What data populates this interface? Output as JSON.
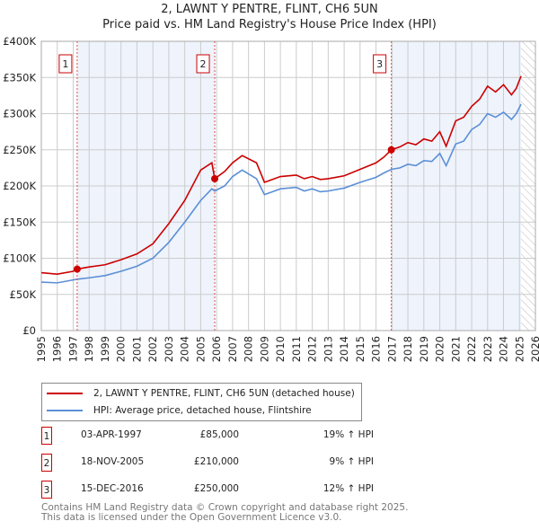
{
  "chart_data": {
    "type": "line",
    "title": "2, LAWNT Y PENTRE, FLINT, CH6 5UN",
    "subtitle": "Price paid vs. HM Land Registry's House Price Index (HPI)",
    "xlim": [
      1995,
      2026
    ],
    "ylim": [
      0,
      400000
    ],
    "y_ticks": [
      {
        "v": 0,
        "label": "£0"
      },
      {
        "v": 50000,
        "label": "£50K"
      },
      {
        "v": 100000,
        "label": "£100K"
      },
      {
        "v": 150000,
        "label": "£150K"
      },
      {
        "v": 200000,
        "label": "£200K"
      },
      {
        "v": 250000,
        "label": "£250K"
      },
      {
        "v": 300000,
        "label": "£300K"
      },
      {
        "v": 350000,
        "label": "£350K"
      },
      {
        "v": 400000,
        "label": "£400K"
      }
    ],
    "x_ticks": [
      "1995",
      "1996",
      "1997",
      "1998",
      "1999",
      "2000",
      "2001",
      "2002",
      "2003",
      "2004",
      "2005",
      "2006",
      "2007",
      "2008",
      "2009",
      "2010",
      "2011",
      "2012",
      "2013",
      "2014",
      "2015",
      "2016",
      "2017",
      "2018",
      "2019",
      "2020",
      "2021",
      "2022",
      "2023",
      "2024",
      "2025",
      "2026"
    ],
    "grid": true,
    "shaded_ranges": [
      [
        1997.25,
        2005.88
      ],
      [
        2016.96,
        2025.1
      ]
    ],
    "hatched_range": [
      2025.1,
      2026
    ],
    "series": [
      {
        "name": "2, LAWNT Y PENTRE, FLINT, CH6 5UN (detached house)",
        "color": "#cc0000",
        "x": [
          1995,
          1996,
          1997,
          1997.25,
          1998,
          1999,
          2000,
          2001,
          2002,
          2003,
          2004,
          2005,
          2005.7,
          2005.88,
          2006.5,
          2007,
          2007.6,
          2008.5,
          2009,
          2009.5,
          2010,
          2011,
          2011.5,
          2012,
          2012.5,
          2013,
          2014,
          2015,
          2016,
          2016.5,
          2016.96,
          2017.5,
          2018,
          2018.5,
          2019,
          2019.5,
          2020,
          2020.4,
          2021,
          2021.5,
          2022,
          2022.5,
          2023,
          2023.5,
          2024,
          2024.5,
          2024.8,
          2025.1
        ],
        "y": [
          80000,
          78000,
          82000,
          85000,
          88000,
          91000,
          98000,
          106000,
          120000,
          148000,
          180000,
          222000,
          232000,
          210000,
          220000,
          232000,
          242000,
          232000,
          205000,
          209000,
          213000,
          215000,
          210000,
          213000,
          209000,
          210000,
          214000,
          223000,
          232000,
          240000,
          250000,
          254000,
          260000,
          257000,
          265000,
          262000,
          275000,
          255000,
          290000,
          295000,
          310000,
          320000,
          338000,
          330000,
          340000,
          326000,
          335000,
          352000
        ]
      },
      {
        "name": "HPI: Average price, detached house, Flintshire",
        "color": "#5b8fd6",
        "x": [
          1995,
          1996,
          1997,
          1997.25,
          1998,
          1999,
          2000,
          2001,
          2002,
          2003,
          2004,
          2005,
          2005.7,
          2005.88,
          2006.5,
          2007,
          2007.6,
          2008.5,
          2009,
          2009.5,
          2010,
          2011,
          2011.5,
          2012,
          2012.5,
          2013,
          2014,
          2015,
          2016,
          2016.5,
          2016.96,
          2017.5,
          2018,
          2018.5,
          2019,
          2019.5,
          2020,
          2020.4,
          2021,
          2021.5,
          2022,
          2022.5,
          2023,
          2023.5,
          2024,
          2024.5,
          2024.8,
          2025.1
        ],
        "y": [
          67000,
          66000,
          70000,
          71000,
          73000,
          76000,
          82000,
          89000,
          100000,
          122000,
          150000,
          180000,
          196000,
          193000,
          200000,
          213000,
          222000,
          210000,
          188000,
          192000,
          196000,
          198000,
          193000,
          196000,
          192000,
          193000,
          197000,
          205000,
          212000,
          218000,
          223000,
          225000,
          230000,
          228000,
          235000,
          234000,
          245000,
          228000,
          258000,
          262000,
          278000,
          285000,
          300000,
          295000,
          302000,
          292000,
          300000,
          313000
        ]
      }
    ],
    "sales": [
      {
        "label": "1",
        "date": "03-APR-1997",
        "x": 1997.25,
        "price": "£85,000",
        "value": 85000,
        "hpi": "19% ↑ HPI"
      },
      {
        "label": "2",
        "date": "18-NOV-2005",
        "x": 2005.88,
        "price": "£210,000",
        "value": 210000,
        "hpi": "9% ↑ HPI"
      },
      {
        "label": "3",
        "date": "15-DEC-2016",
        "x": 2016.96,
        "price": "£250,000",
        "value": 250000,
        "hpi": "12% ↑ HPI"
      }
    ]
  },
  "footer": {
    "line1": "Contains HM Land Registry data © Crown copyright and database right 2025.",
    "line2": "This data is licensed under the Open Government Licence v3.0."
  }
}
